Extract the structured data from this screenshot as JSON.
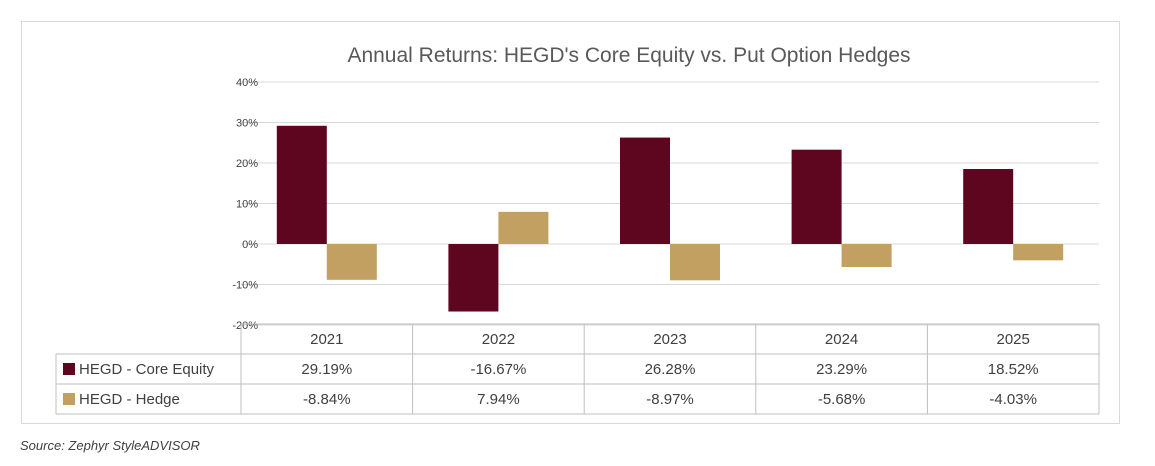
{
  "chart_data": {
    "type": "bar",
    "title": "Annual Returns: HEGD's Core Equity vs. Put Option Hedges",
    "categories": [
      "2021",
      "2022",
      "2023",
      "2024",
      "2025"
    ],
    "series": [
      {
        "name": "HEGD - Core Equity",
        "color": "#5e0620",
        "values": [
          29.19,
          -16.67,
          26.28,
          23.29,
          18.52
        ],
        "labels": [
          "29.19%",
          "-16.67%",
          "26.28%",
          "23.29%",
          "18.52%"
        ]
      },
      {
        "name": "HEGD - Hedge",
        "color": "#c1a062",
        "values": [
          -8.84,
          7.94,
          -8.97,
          -5.68,
          -4.03
        ],
        "labels": [
          "-8.84%",
          "7.94%",
          "-8.97%",
          "-5.68%",
          "-4.03%"
        ]
      }
    ],
    "yticks": [
      "40%",
      "30%",
      "20%",
      "10%",
      "0%",
      "-10%",
      "-20%"
    ],
    "ylim": [
      -20,
      40
    ],
    "grid": true,
    "legend": "data-table"
  },
  "source": "Source: Zephyr StyleADVISOR"
}
